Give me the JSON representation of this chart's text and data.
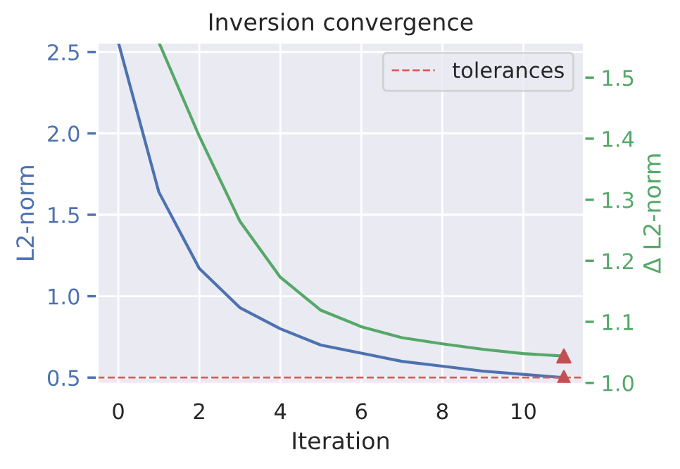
{
  "chart_data": {
    "type": "line",
    "title": "Inversion convergence",
    "xlabel": "Iteration",
    "ylabel": "L2-norm",
    "y2label": "Δ L2-norm",
    "x": [
      0,
      1,
      2,
      3,
      4,
      5,
      6,
      7,
      8,
      9,
      10,
      11
    ],
    "series": [
      {
        "color": "#4c72b0",
        "values": [
          2.56,
          1.64,
          1.17,
          0.93,
          0.8,
          0.7,
          0.65,
          0.6,
          0.57,
          0.54,
          0.52,
          0.5
        ]
      },
      {
        "color": "#55a868",
        "axis": "y2",
        "values": [
          null,
          1.558,
          1.404,
          1.265,
          1.173,
          1.119,
          1.092,
          1.074,
          1.064,
          1.055,
          1.048,
          1.044
        ]
      },
      {
        "type": "scatter",
        "marker": "triangle",
        "color": "#c44e52",
        "x": [
          11
        ],
        "values": [
          0.5
        ]
      },
      {
        "type": "scatter",
        "marker": "triangle",
        "color": "#c44e52",
        "axis": "y2",
        "x": [
          11
        ],
        "values": [
          1.044
        ]
      }
    ],
    "ref_lines": [
      {
        "axis": "y",
        "value": 0.5,
        "label": "tolerances",
        "color": "#e15759",
        "line_style": "dashed"
      }
    ],
    "xlim": [
      -0.52,
      11.5
    ],
    "xticks": [
      0,
      2,
      4,
      6,
      8,
      10
    ],
    "ylim": [
      0.46,
      2.56
    ],
    "yticks": [
      {
        "value": 0.5,
        "label": "0.5"
      },
      {
        "value": 1.0,
        "label": "1.0"
      },
      {
        "value": 1.5,
        "label": "1.5"
      },
      {
        "value": 2.0,
        "label": "2.0"
      },
      {
        "value": 2.5,
        "label": "2.5"
      }
    ],
    "y2lim": [
      0.998,
      1.558
    ],
    "y2ticks": [
      {
        "value": 1.0,
        "label": "1.0"
      },
      1.1,
      1.2,
      1.3,
      1.4,
      1.5
    ],
    "grid": true,
    "legend": "top right"
  }
}
